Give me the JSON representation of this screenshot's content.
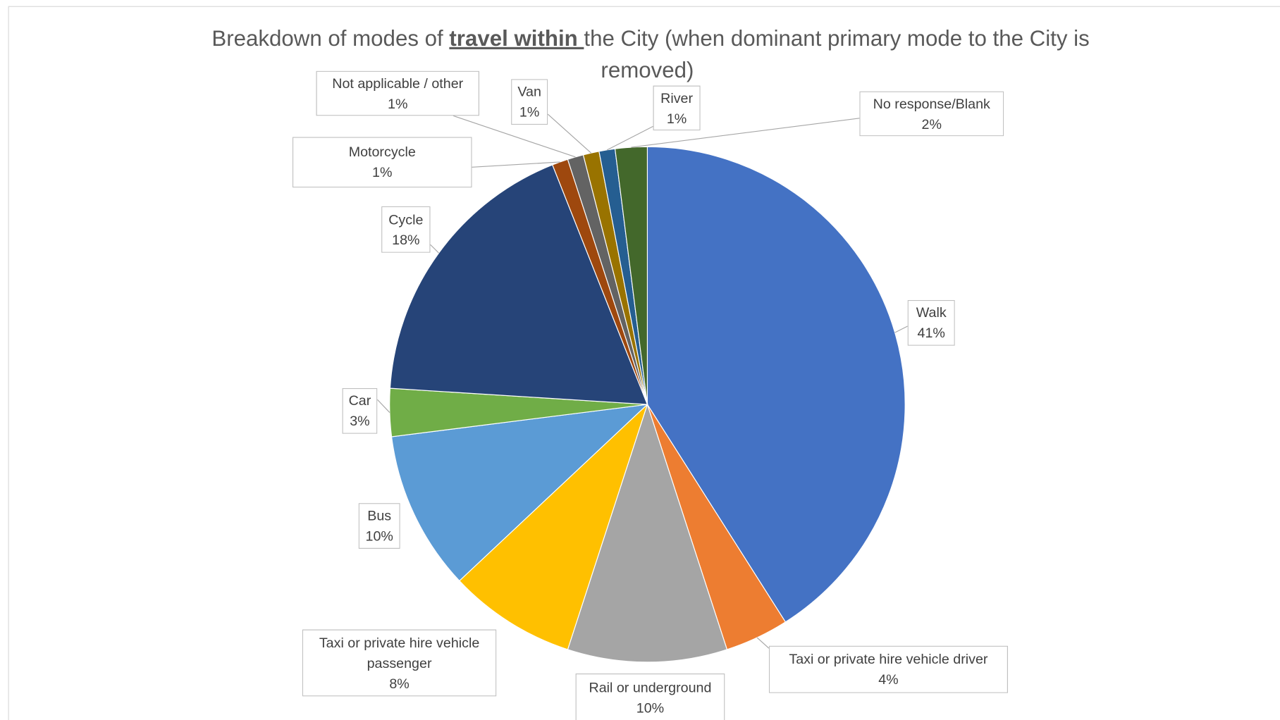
{
  "chart_data": {
    "type": "pie",
    "title_parts": [
      "Breakdown of modes of ",
      "travel within ",
      "the City (when dominant primary mode to the City is",
      "removed)"
    ],
    "categories": [
      "Walk",
      "Taxi or private hire vehicle driver",
      "Rail or underground",
      "Taxi or private hire vehicle passenger",
      "Bus",
      "Car",
      "Cycle",
      "Motorcycle",
      "Not applicable / other",
      "Van",
      "River",
      "No response/Blank"
    ],
    "values": [
      41,
      4,
      10,
      8,
      10,
      3,
      18,
      1,
      1,
      1,
      1,
      2
    ],
    "value_labels": [
      "41%",
      "4%",
      "10%",
      "8%",
      "10%",
      "3%",
      "18%",
      "1%",
      "1%",
      "1%",
      "1%",
      "2%"
    ],
    "colors": [
      "#4472c4",
      "#ed7d31",
      "#a5a5a5",
      "#ffc000",
      "#5b9bd5",
      "#70ad47",
      "#264478",
      "#9e480e",
      "#636363",
      "#997300",
      "#255e91",
      "#43682b"
    ]
  }
}
